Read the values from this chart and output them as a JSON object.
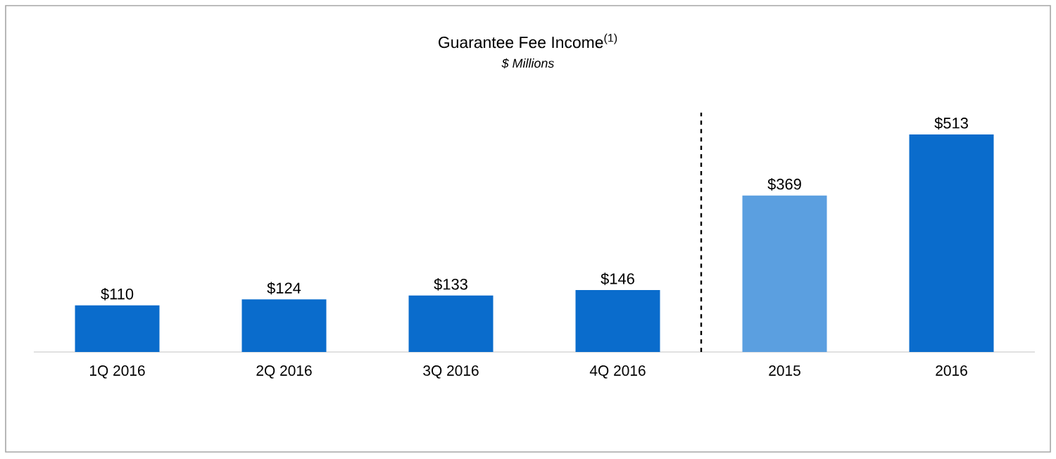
{
  "chart_data": {
    "type": "bar",
    "title": "Guarantee  Fee Income$^{(1)}$",
    "subtitle": "*$ Millions*",
    "categories": [
      "1Q 2016",
      "2Q 2016",
      "3Q 2016",
      "4Q 2016",
      "2015",
      "2016"
    ],
    "values": [
      110,
      124,
      133,
      146,
      369,
      513
    ],
    "colors": [
      "#0a6ccc",
      "#0a6ccc",
      "#0a6ccc",
      "#0a6ccc",
      "#5b9fe0",
      "#0a6ccc"
    ],
    "value_labels": [
      "$110",
      "$124",
      "$133",
      "$146",
      "$369",
      "$513"
    ],
    "grid": false
  }
}
